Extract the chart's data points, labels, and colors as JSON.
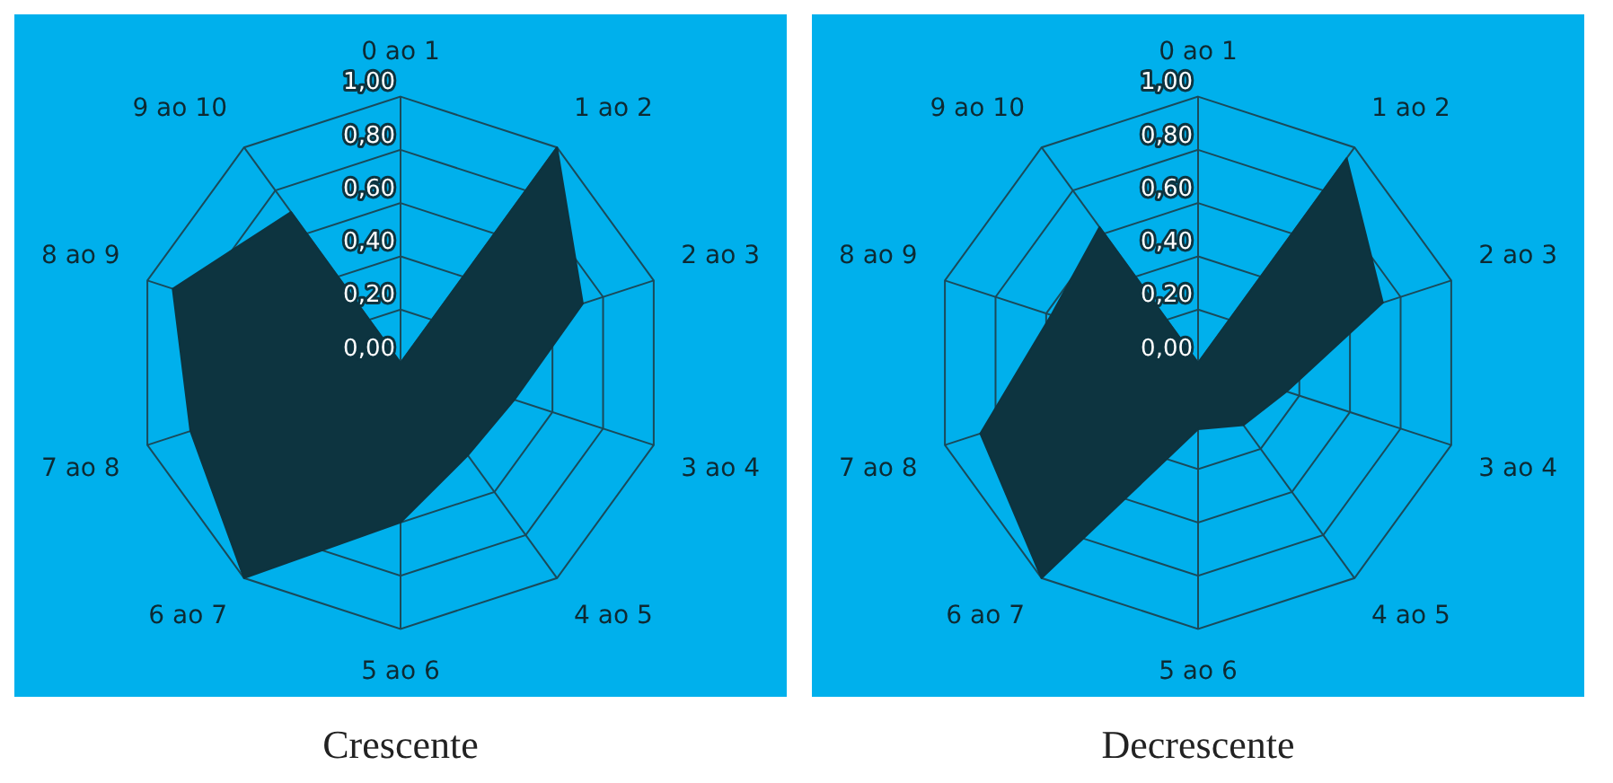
{
  "chart_data": [
    {
      "type": "radar",
      "title": "Crescente",
      "categories": [
        "0 ao 1",
        "1 ao 2",
        "2 ao 3",
        "3 ao 4",
        "4 ao 5",
        "5 ao 6",
        "6 ao 7",
        "7 ao 8",
        "8 ao 9",
        "9 ao 10"
      ],
      "series": [
        {
          "color": "#0d3440",
          "values": [
            0,
            1.0,
            0.72,
            0.45,
            0.43,
            0.6,
            1.0,
            0.83,
            0.9,
            0.7
          ]
        }
      ],
      "ylim": [
        0,
        1
      ],
      "yticks": [
        {
          "value": 0,
          "label": "0,00"
        },
        {
          "value": 0.2,
          "label": "0,20"
        },
        {
          "value": 0.4,
          "label": "0,40"
        },
        {
          "value": 0.6,
          "label": "0,60"
        },
        {
          "value": 0.8,
          "label": "0,80"
        },
        {
          "value": 1,
          "label": "1,00"
        }
      ],
      "grid": true,
      "legend": false,
      "marker": "none"
    },
    {
      "type": "radar",
      "title": "Decrescente",
      "categories": [
        "0 ao 1",
        "1 ao 2",
        "2 ao 3",
        "3 ao 4",
        "4 ao 5",
        "5 ao 6",
        "6 ao 7",
        "7 ao 8",
        "8 ao 9",
        "9 ao 10"
      ],
      "series": [
        {
          "color": "#0d3440",
          "values": [
            0,
            0.95,
            0.73,
            0.35,
            0.29,
            0.25,
            1.0,
            0.86,
            0.58,
            0.63
          ]
        }
      ],
      "ylim": [
        0,
        1
      ],
      "yticks": [
        {
          "value": 0,
          "label": "0,00"
        },
        {
          "value": 0.2,
          "label": "0,20"
        },
        {
          "value": 0.4,
          "label": "0,40"
        },
        {
          "value": 0.6,
          "label": "0,60"
        },
        {
          "value": 0.8,
          "label": "0,80"
        },
        {
          "value": 1,
          "label": "1,00"
        }
      ],
      "grid": true,
      "legend": false,
      "marker": "none"
    }
  ]
}
